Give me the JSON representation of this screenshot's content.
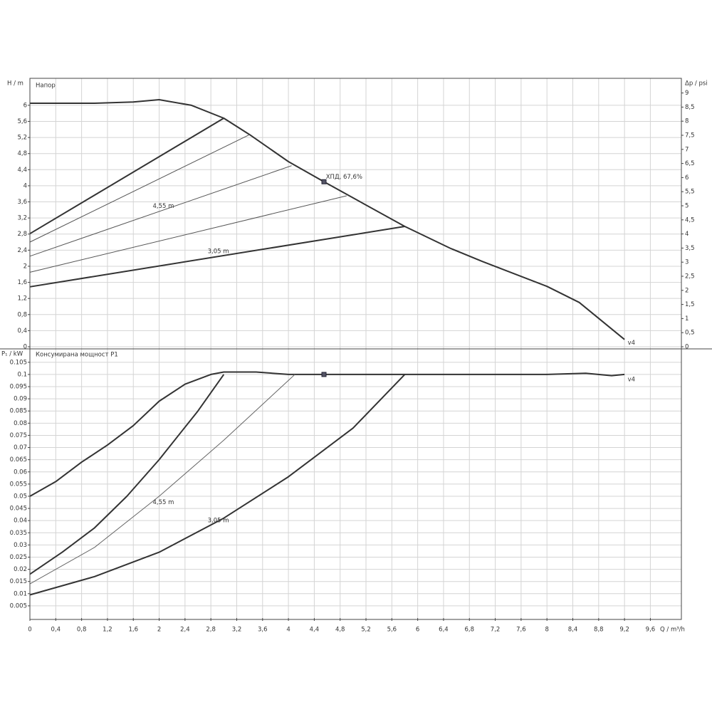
{
  "chart_data": [
    {
      "type": "line",
      "title": "Напор",
      "ylabel": "H / m",
      "y2label": "Δp / psi",
      "xlim": [
        0,
        10.08
      ],
      "ylim": [
        0,
        6.67
      ],
      "y2lim": [
        0,
        9.52
      ],
      "yticks": [
        0,
        {
          "value": 0.4,
          "label": "0,4"
        },
        {
          "value": 0.8,
          "label": "0,8"
        },
        {
          "value": 1.2,
          "label": "1,2"
        },
        {
          "value": 1.6,
          "label": "1,6"
        },
        2,
        {
          "value": 2.4,
          "label": "2,4"
        },
        {
          "value": 2.8,
          "label": "2,8"
        },
        {
          "value": 3.2,
          "label": "3,2"
        },
        {
          "value": 3.6,
          "label": "3,6"
        },
        4,
        {
          "value": 4.4,
          "label": "4,4"
        },
        {
          "value": 4.8,
          "label": "4,8"
        },
        {
          "value": 5.2,
          "label": "5,2"
        },
        {
          "value": 5.6,
          "label": "5,6"
        },
        6
      ],
      "y2ticks": [
        0,
        {
          "value": 0.5,
          "label": "0,5"
        },
        1,
        {
          "value": 1.5,
          "label": "1,5"
        },
        2,
        {
          "value": 2.5,
          "label": "2,5"
        },
        3,
        {
          "value": 3.5,
          "label": "3,5"
        },
        4,
        {
          "value": 4.5,
          "label": "4,5"
        },
        5,
        {
          "value": 5.5,
          "label": "5,5"
        },
        6,
        {
          "value": 6.5,
          "label": "6,5"
        },
        7,
        {
          "value": 7.5,
          "label": "7,5"
        },
        8,
        {
          "value": 8.5,
          "label": "8,5"
        },
        9
      ],
      "grid": true,
      "series": [
        {
          "color": "#333333",
          "linewidth": 2,
          "x": [
            0,
            1,
            1.6,
            2,
            2.5,
            3,
            3.4,
            4,
            4.55,
            5,
            5.8,
            6.5,
            7,
            8,
            8.5,
            9.2
          ],
          "values": [
            6.05,
            6.05,
            6.08,
            6.14,
            6.0,
            5.68,
            5.27,
            4.6,
            4.1,
            3.7,
            2.99,
            2.45,
            2.12,
            1.5,
            1.1,
            0.18
          ]
        },
        {
          "color": "#333333",
          "linewidth": 2,
          "x": [
            0,
            3
          ],
          "values": [
            2.81,
            5.68
          ]
        },
        {
          "color": "#555555",
          "linewidth": 1,
          "x": [
            0,
            3.4
          ],
          "values": [
            2.6,
            5.27
          ]
        },
        {
          "color": "#555555",
          "linewidth": 1,
          "x": [
            0,
            4.05
          ],
          "values": [
            2.25,
            4.5
          ]
        },
        {
          "color": "#555555",
          "linewidth": 1,
          "x": [
            0,
            4.9
          ],
          "values": [
            1.85,
            3.75
          ]
        },
        {
          "color": "#333333",
          "linewidth": 2,
          "x": [
            0,
            5.8
          ],
          "values": [
            1.49,
            2.99
          ]
        }
      ],
      "marker": {
        "x": 4.55,
        "y": 4.1
      },
      "annotations": [
        {
          "text": "4,55 m",
          "x": 1.9,
          "y": 3.49
        },
        {
          "text": "3,05 m",
          "x": 2.75,
          "y": 2.37
        },
        {
          "text": "ХПД, 67,6%",
          "x": 4.58,
          "y": 4.22
        },
        {
          "text": "v4",
          "x": 9.25,
          "y": 0.1
        }
      ]
    },
    {
      "type": "line",
      "title": "Консумирана мощност P1",
      "ylabel": "P₁ / kW",
      "xlabel": "Q / m³/h",
      "xlim": [
        0,
        10.08
      ],
      "ylim": [
        0,
        0.1105
      ],
      "xticks": [
        0,
        {
          "value": 0.4,
          "label": "0,4"
        },
        {
          "value": 0.8,
          "label": "0,8"
        },
        {
          "value": 1.2,
          "label": "1,2"
        },
        {
          "value": 1.6,
          "label": "1,6"
        },
        2,
        {
          "value": 2.4,
          "label": "2,4"
        },
        {
          "value": 2.8,
          "label": "2,8"
        },
        {
          "value": 3.2,
          "label": "3,2"
        },
        {
          "value": 3.6,
          "label": "3,6"
        },
        4,
        {
          "value": 4.4,
          "label": "4,4"
        },
        {
          "value": 4.8,
          "label": "4,8"
        },
        {
          "value": 5.2,
          "label": "5,2"
        },
        {
          "value": 5.6,
          "label": "5,6"
        },
        6,
        {
          "value": 6.4,
          "label": "6,4"
        },
        {
          "value": 6.8,
          "label": "6,8"
        },
        {
          "value": 7.2,
          "label": "7,2"
        },
        {
          "value": 7.6,
          "label": "7,6"
        },
        8,
        {
          "value": 8.4,
          "label": "8,4"
        },
        {
          "value": 8.8,
          "label": "8,8"
        },
        {
          "value": 9.2,
          "label": "9,2"
        },
        {
          "value": 9.6,
          "label": "9,6"
        }
      ],
      "yticks": [
        0.005,
        0.01,
        0.015,
        0.02,
        0.025,
        0.03,
        0.035,
        0.04,
        0.045,
        0.05,
        0.055,
        0.06,
        0.065,
        0.07,
        0.075,
        0.08,
        0.085,
        0.09,
        0.095,
        0.1,
        0.105
      ],
      "grid": true,
      "series": [
        {
          "color": "#333333",
          "linewidth": 2,
          "x": [
            0,
            0.4,
            0.8,
            1.2,
            1.6,
            2,
            2.4,
            2.8,
            3,
            3.5,
            4,
            5,
            6,
            7,
            8,
            8.6,
            9,
            9.2
          ],
          "values": [
            0.05,
            0.056,
            0.064,
            0.071,
            0.079,
            0.089,
            0.096,
            0.1,
            0.101,
            0.101,
            0.1,
            0.1,
            0.1,
            0.1,
            0.1,
            0.1005,
            0.0995,
            0.1
          ]
        },
        {
          "color": "#333333",
          "linewidth": 2,
          "x": [
            0,
            0.5,
            1,
            1.5,
            2,
            2.6,
            3
          ],
          "values": [
            0.018,
            0.027,
            0.037,
            0.05,
            0.065,
            0.085,
            0.1
          ]
        },
        {
          "color": "#666666",
          "linewidth": 1,
          "x": [
            0,
            1,
            2,
            3,
            4.1
          ],
          "values": [
            0.014,
            0.029,
            0.05,
            0.073,
            0.1
          ]
        },
        {
          "color": "#333333",
          "linewidth": 2,
          "x": [
            0,
            1,
            2,
            3,
            4,
            5,
            5.8
          ],
          "values": [
            0.0095,
            0.017,
            0.027,
            0.041,
            0.058,
            0.078,
            0.1
          ]
        }
      ],
      "marker": {
        "x": 4.55,
        "y": 0.1
      },
      "annotations": [
        {
          "text": "4,55 m",
          "x": 1.9,
          "y": 0.0475
        },
        {
          "text": "3,05 m",
          "x": 2.75,
          "y": 0.04
        },
        {
          "text": "v4",
          "x": 9.25,
          "y": 0.098
        }
      ]
    }
  ]
}
